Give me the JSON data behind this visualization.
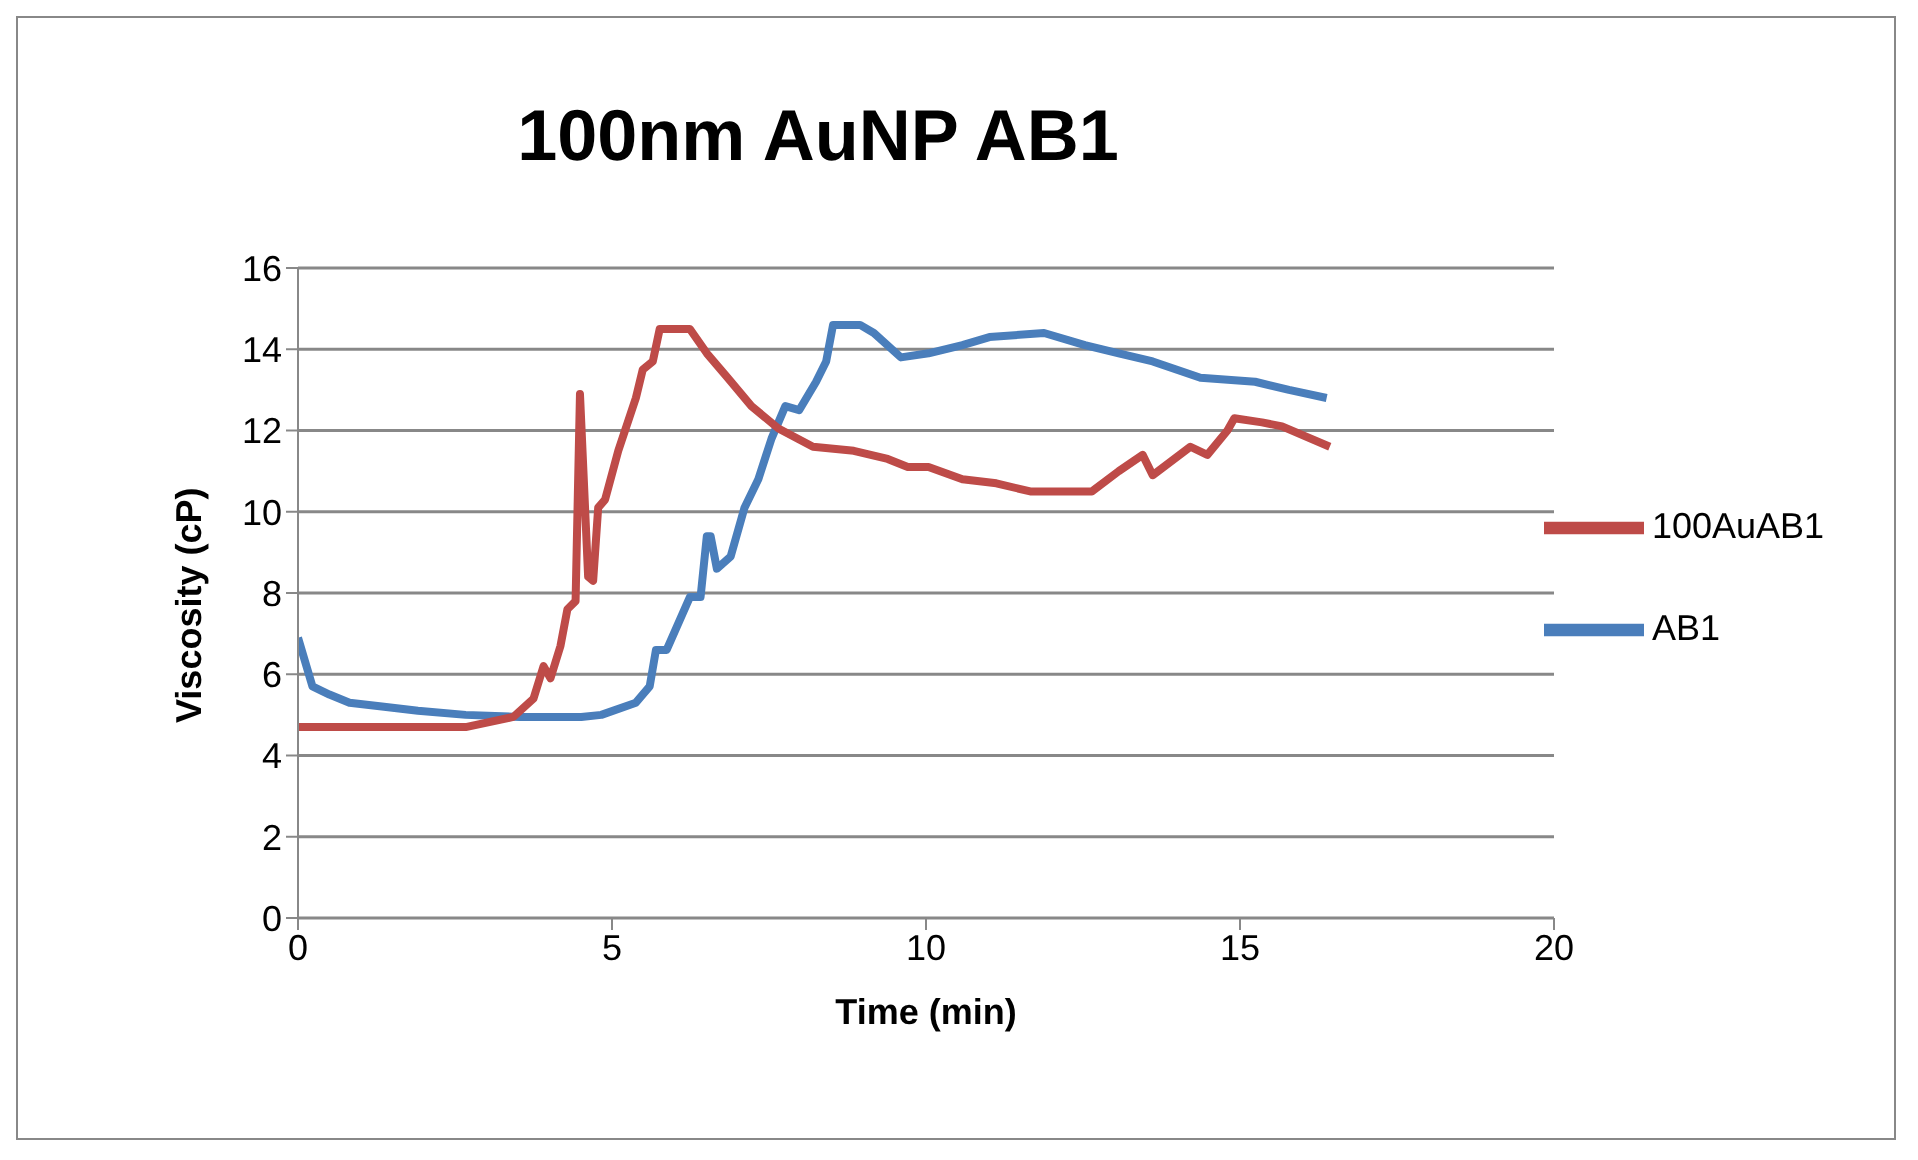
{
  "chart_data": {
    "type": "line",
    "title": "100nm AuNP AB1",
    "xlabel": "Time (min)",
    "ylabel": "Viscosity (cP)",
    "xlim": [
      0,
      20
    ],
    "xticks": [
      0,
      5,
      10,
      15,
      20
    ],
    "ylim": [
      0,
      16
    ],
    "yticks": [
      0,
      2,
      4,
      6,
      8,
      10,
      12,
      14,
      16
    ],
    "grid": "y",
    "legend": "right",
    "marker": "none",
    "line_style": "solid",
    "series": [
      {
        "name": "AB1",
        "color": "#4a7ebb",
        "x": [
          0,
          0.23,
          0.5,
          0.82,
          1.37,
          1.91,
          2.67,
          3.53,
          4.51,
          4.83,
          5.38,
          5.6,
          5.7,
          5.87,
          6.24,
          6.41,
          6.51,
          6.57,
          6.67,
          6.89,
          7.11,
          7.33,
          7.54,
          7.76,
          7.98,
          8.25,
          8.41,
          8.52,
          8.95,
          9.17,
          9.6,
          10.04,
          10.58,
          11.01,
          11.88,
          12.53,
          13.07,
          13.61,
          14.37,
          15.24,
          15.78,
          16.38
        ],
        "values": [
          6.9,
          5.7,
          5.5,
          5.3,
          5.2,
          5.1,
          5.0,
          4.95,
          4.95,
          5.0,
          5.3,
          5.7,
          6.6,
          6.6,
          7.9,
          7.9,
          9.4,
          9.4,
          8.6,
          8.9,
          10.1,
          10.8,
          11.8,
          12.6,
          12.5,
          13.2,
          13.7,
          14.6,
          14.6,
          14.4,
          13.8,
          13.9,
          14.1,
          14.3,
          14.4,
          14.1,
          13.9,
          13.7,
          13.3,
          13.2,
          13.0,
          12.8
        ]
      },
      {
        "name": "100AuAB1",
        "color": "#be4b48",
        "x": [
          0,
          2.67,
          3.43,
          3.75,
          3.91,
          4.02,
          4.18,
          4.29,
          4.42,
          4.49,
          4.62,
          4.7,
          4.78,
          4.89,
          5.1,
          5.38,
          5.49,
          5.65,
          5.76,
          6.24,
          6.51,
          6.84,
          7.22,
          7.65,
          8.2,
          8.85,
          9.39,
          9.71,
          10.04,
          10.58,
          11.12,
          11.66,
          12.64,
          13.07,
          13.45,
          13.61,
          14.21,
          14.48,
          14.8,
          14.91,
          15.35,
          15.67,
          16.43
        ],
        "values": [
          4.7,
          4.7,
          4.95,
          5.4,
          6.2,
          5.9,
          6.7,
          7.6,
          7.8,
          12.9,
          8.4,
          8.3,
          10.1,
          10.3,
          11.5,
          12.8,
          13.5,
          13.7,
          14.5,
          14.5,
          13.9,
          13.3,
          12.6,
          12.05,
          11.6,
          11.5,
          11.3,
          11.1,
          11.1,
          10.8,
          10.7,
          10.5,
          10.5,
          11.0,
          11.4,
          10.9,
          11.6,
          11.4,
          12.0,
          12.3,
          12.2,
          12.1,
          11.6
        ]
      }
    ]
  }
}
